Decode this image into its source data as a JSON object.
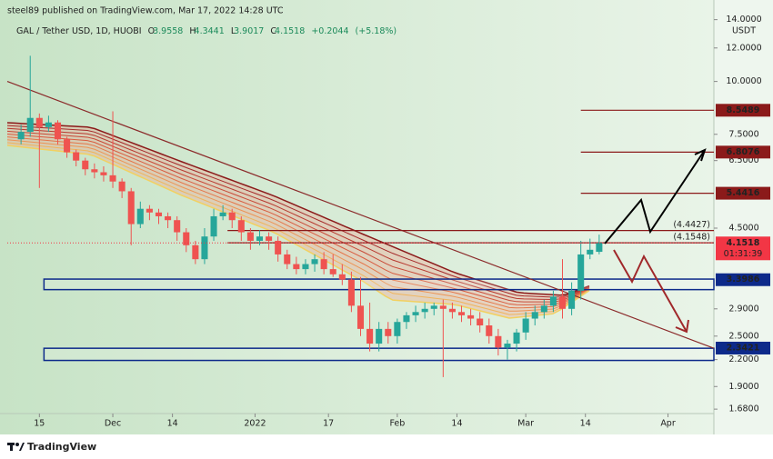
{
  "chart_data": {
    "type": "candlestick",
    "header": "steel89 published on TradingView.com, Mar 17, 2022 14:28 UTC",
    "symbol": "GAL / Tether USD, 1D, HUOBI",
    "ohlc_letters": [
      "O",
      "H",
      "L",
      "C"
    ],
    "change": {
      "value": 0.2044,
      "label": "+0.2044"
    },
    "change_pct": {
      "value": 5.18,
      "label": "(+5.18%)"
    },
    "y_unit": "USDT",
    "log_scale": true,
    "grid": false,
    "up_color": "#26a69a",
    "down_color": "#ef5350",
    "xlim": [
      "2021-11-08",
      "2022-04-11"
    ],
    "xticks": [
      {
        "value": "2021-11-15",
        "label": "15"
      },
      {
        "value": "2021-12-01",
        "label": "Dec"
      },
      {
        "value": "2021-12-14",
        "label": "14"
      },
      {
        "value": "2022-01-01",
        "label": "2022"
      },
      {
        "value": "2022-01-17",
        "label": "17"
      },
      {
        "value": "2022-02-01",
        "label": "Feb"
      },
      {
        "value": "2022-02-14",
        "label": "14"
      },
      {
        "value": "2022-03-01",
        "label": "Mar"
      },
      {
        "value": "2022-03-14",
        "label": "14"
      },
      {
        "value": "2022-04-01",
        "label": "Apr"
      }
    ],
    "ylim": [
      1.64,
      15.2
    ],
    "yticks": [
      {
        "value": 14,
        "label": "14.0000"
      },
      {
        "value": 12,
        "label": "12.0000"
      },
      {
        "value": 10,
        "label": "10.0000"
      },
      {
        "value": 7.5,
        "label": "7.5000"
      },
      {
        "value": 6.5,
        "label": "6.5000"
      },
      {
        "value": 4.5,
        "label": "4.5000"
      },
      {
        "value": 2.9,
        "label": "2.9000"
      },
      {
        "value": 2.5,
        "label": "2.5000"
      },
      {
        "value": 2.2,
        "label": "2.2000"
      },
      {
        "value": 1.9,
        "label": "1.9000"
      },
      {
        "value": 1.68,
        "label": "1.6800"
      }
    ],
    "series": [
      {
        "x": [
          "2021-11-11",
          "2021-11-13",
          "2021-11-15",
          "2021-11-17",
          "2021-11-19",
          "2021-11-21",
          "2021-11-23",
          "2021-11-25",
          "2021-11-27",
          "2021-11-29",
          "2021-12-01",
          "2021-12-03",
          "2021-12-05",
          "2021-12-07",
          "2021-12-09",
          "2021-12-11",
          "2021-12-13",
          "2021-12-15",
          "2021-12-17",
          "2021-12-19",
          "2021-12-21",
          "2021-12-23",
          "2021-12-25",
          "2021-12-27",
          "2021-12-29",
          "2021-12-31",
          "2022-01-02",
          "2022-01-04",
          "2022-01-06",
          "2022-01-08",
          "2022-01-10",
          "2022-01-12",
          "2022-01-14",
          "2022-01-16",
          "2022-01-18",
          "2022-01-20",
          "2022-01-22",
          "2022-01-24",
          "2022-01-26",
          "2022-01-28",
          "2022-01-30",
          "2022-02-01",
          "2022-02-03",
          "2022-02-05",
          "2022-02-07",
          "2022-02-09",
          "2022-02-11",
          "2022-02-13",
          "2022-02-15",
          "2022-02-17",
          "2022-02-19",
          "2022-02-21",
          "2022-02-23",
          "2022-02-25",
          "2022-02-27",
          "2022-03-01",
          "2022-03-03",
          "2022-03-05",
          "2022-03-07",
          "2022-03-09",
          "2022-03-11",
          "2022-03-13",
          "2022-03-15",
          "2022-03-17"
        ],
        "open": [
          7.3,
          7.6,
          8.2,
          7.8,
          8.0,
          7.3,
          6.8,
          6.5,
          6.2,
          6.1,
          6.0,
          5.8,
          5.5,
          4.6,
          5.0,
          4.9,
          4.8,
          4.7,
          4.4,
          4.1,
          3.8,
          4.3,
          4.8,
          4.9,
          4.7,
          4.4,
          4.2,
          4.3,
          4.2,
          3.9,
          3.7,
          3.6,
          3.7,
          3.8,
          3.6,
          3.5,
          3.4,
          2.95,
          2.6,
          2.4,
          2.6,
          2.5,
          2.7,
          2.8,
          2.85,
          2.9,
          2.95,
          2.9,
          2.85,
          2.8,
          2.75,
          2.65,
          2.5,
          2.35,
          2.4,
          2.55,
          2.75,
          2.85,
          2.95,
          3.1,
          2.9,
          3.2,
          3.9,
          3.9558
        ],
        "high": [
          7.9,
          11.5,
          8.4,
          8.3,
          8.1,
          7.4,
          6.9,
          6.6,
          6.4,
          6.3,
          8.5,
          5.9,
          5.6,
          5.2,
          5.1,
          5.0,
          4.9,
          4.8,
          4.5,
          4.2,
          4.5,
          5.0,
          5.1,
          5.0,
          4.8,
          4.5,
          4.45,
          4.4,
          4.3,
          4.0,
          3.85,
          3.8,
          3.9,
          3.95,
          3.9,
          3.7,
          3.55,
          3.45,
          3.0,
          2.7,
          2.7,
          2.75,
          2.85,
          2.95,
          3.0,
          3.0,
          3.05,
          3.0,
          2.95,
          2.9,
          2.85,
          2.75,
          2.6,
          2.45,
          2.6,
          2.85,
          2.95,
          3.05,
          3.2,
          3.8,
          3.35,
          4.2,
          4.25,
          4.3441
        ],
        "low": [
          7.1,
          7.4,
          5.6,
          7.6,
          7.1,
          6.6,
          6.3,
          6.0,
          5.9,
          5.8,
          5.6,
          5.3,
          4.1,
          4.5,
          4.7,
          4.6,
          4.5,
          4.2,
          3.95,
          3.7,
          3.7,
          4.2,
          4.7,
          4.5,
          4.2,
          4.0,
          4.1,
          4.0,
          3.75,
          3.6,
          3.5,
          3.5,
          3.55,
          3.5,
          3.45,
          3.3,
          2.85,
          2.5,
          2.3,
          2.3,
          2.4,
          2.4,
          2.6,
          2.7,
          2.75,
          2.8,
          2.0,
          2.75,
          2.7,
          2.65,
          2.55,
          2.4,
          2.25,
          2.2,
          2.3,
          2.45,
          2.65,
          2.75,
          2.85,
          2.75,
          2.8,
          3.05,
          3.8,
          3.9017
        ],
        "close": [
          7.6,
          8.2,
          7.8,
          8.0,
          7.3,
          6.8,
          6.5,
          6.2,
          6.1,
          6.0,
          5.8,
          5.5,
          4.6,
          5.0,
          4.9,
          4.8,
          4.7,
          4.4,
          4.1,
          3.8,
          4.3,
          4.8,
          4.9,
          4.7,
          4.4,
          4.2,
          4.3,
          4.2,
          3.9,
          3.7,
          3.6,
          3.7,
          3.8,
          3.6,
          3.5,
          3.4,
          2.95,
          2.6,
          2.4,
          2.6,
          2.5,
          2.7,
          2.8,
          2.85,
          2.9,
          2.95,
          2.9,
          2.85,
          2.8,
          2.75,
          2.65,
          2.5,
          2.35,
          2.4,
          2.55,
          2.75,
          2.85,
          2.95,
          3.1,
          2.9,
          3.2,
          3.9,
          4.0,
          4.1518
        ]
      }
    ],
    "price_color": "#f23645",
    "countdown": "01:31:39",
    "levels": [
      {
        "value": 8.5489,
        "start": "2022-03-13",
        "color": "#8b1a1a",
        "tag": true
      },
      {
        "value": 6.8076,
        "start": "2022-03-13",
        "color": "#8b1a1a",
        "tag": true
      },
      {
        "value": 5.4416,
        "start": "2022-03-13",
        "color": "#8b1a1a",
        "tag": true
      },
      {
        "value": {
          "value": 4.4427,
          "label": "(4.4427)"
        },
        "start": "2021-12-26",
        "color": "#8b1a1a",
        "tag": false
      },
      {
        "value": {
          "value": 4.1548,
          "label": "(4.1548)"
        },
        "start": "2021-12-26",
        "color": "#8b1a1a",
        "tag": false
      }
    ],
    "zones": [
      {
        "label": 3.3986,
        "top": 3.41,
        "bottom": 3.22,
        "start": "2021-11-16",
        "color": "#0d2a8a"
      },
      {
        "label": 2.3421,
        "top": 2.34,
        "bottom": 2.19,
        "start": "2021-11-16",
        "color": "#0d2a8a"
      }
    ],
    "trendline": {
      "x": [
        "2021-11-08",
        "2022-04-11"
      ],
      "values": [
        10.0,
        2.34
      ],
      "color": "#8b2a2a"
    },
    "footer": "TradingView"
  }
}
